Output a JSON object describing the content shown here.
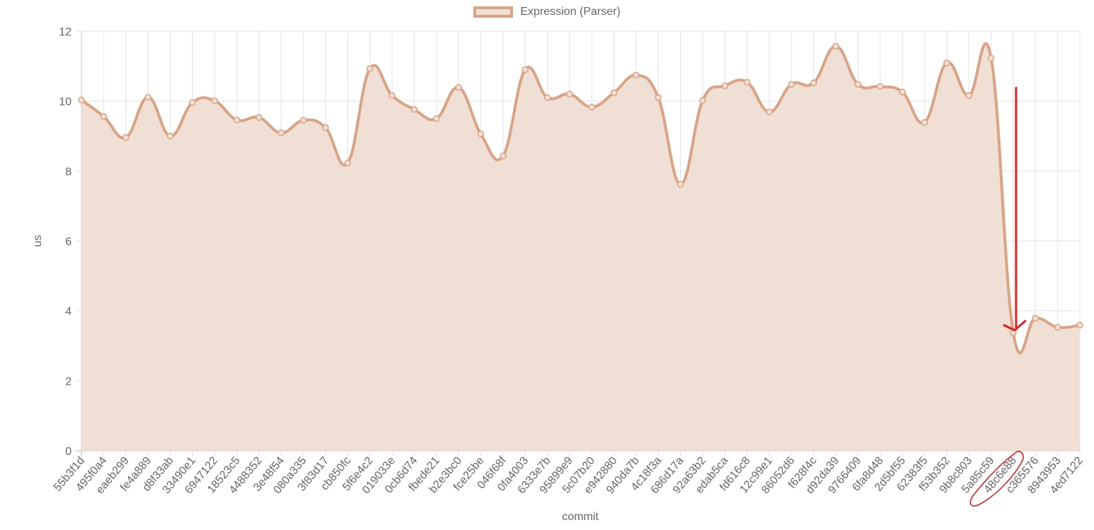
{
  "chart_data": {
    "type": "line",
    "title": "",
    "legend": [
      {
        "label": "Expression (Parser)",
        "position": "top-center"
      }
    ],
    "xlabel": "commit",
    "ylabel": "us",
    "ylim": [
      0,
      12
    ],
    "yticks": [
      0,
      2,
      4,
      6,
      8,
      10,
      12
    ],
    "grid": true,
    "fill": true,
    "curve": "smooth",
    "categories": [
      "55b3f1d",
      "495f0a4",
      "eaeb299",
      "fe4a889",
      "d8f33ab",
      "33490e1",
      "6947122",
      "18523c5",
      "4488352",
      "3e48f54",
      "080a335",
      "3f83d17",
      "cb850fc",
      "5f6e4c2",
      "019033e",
      "0cb6d74",
      "fbede21",
      "b2e3bc0",
      "fce25be",
      "046f68f",
      "0fa4003",
      "6333e7b",
      "95899e9",
      "5c07b20",
      "e942880",
      "940da7b",
      "4c18f3a",
      "686d17a",
      "92a63b2",
      "edab5ca",
      "fd616c8",
      "12c99e1",
      "86052d6",
      "f628f4c",
      "d92da39",
      "9766409",
      "6fa8d48",
      "2d5bf55",
      "62383f5",
      "f53b352",
      "9b8c803",
      "5a85c59",
      "48c6e88",
      "c365576",
      "8943953",
      "4ed7122"
    ],
    "series": [
      {
        "name": "Expression (Parser)",
        "color": "#d9a384",
        "fill_color": "#f0dfd4",
        "values": [
          10.03,
          9.56,
          8.96,
          10.11,
          9.0,
          9.96,
          10.01,
          9.46,
          9.53,
          9.09,
          9.45,
          9.24,
          8.23,
          10.93,
          10.16,
          9.76,
          9.5,
          10.39,
          9.06,
          8.43,
          10.9,
          10.1,
          10.2,
          9.83,
          10.24,
          10.74,
          10.1,
          7.62,
          10.02,
          10.44,
          10.54,
          9.69,
          10.48,
          10.52,
          11.57,
          10.48,
          10.42,
          10.26,
          9.39,
          11.09,
          10.16,
          11.23,
          3.37,
          3.79,
          3.53,
          3.59
        ]
      }
    ],
    "annotations": [
      {
        "type": "arrow",
        "color": "#e02020",
        "description": "red hand-drawn arrow pointing down to 48c6e88 data point"
      },
      {
        "type": "ellipse",
        "color": "#e02020",
        "description": "red hand-drawn circle around 48c6e88 x-axis label"
      }
    ]
  },
  "legend": {
    "label": "Expression (Parser)"
  },
  "axes": {
    "xlabel": "commit",
    "ylabel": "us"
  }
}
